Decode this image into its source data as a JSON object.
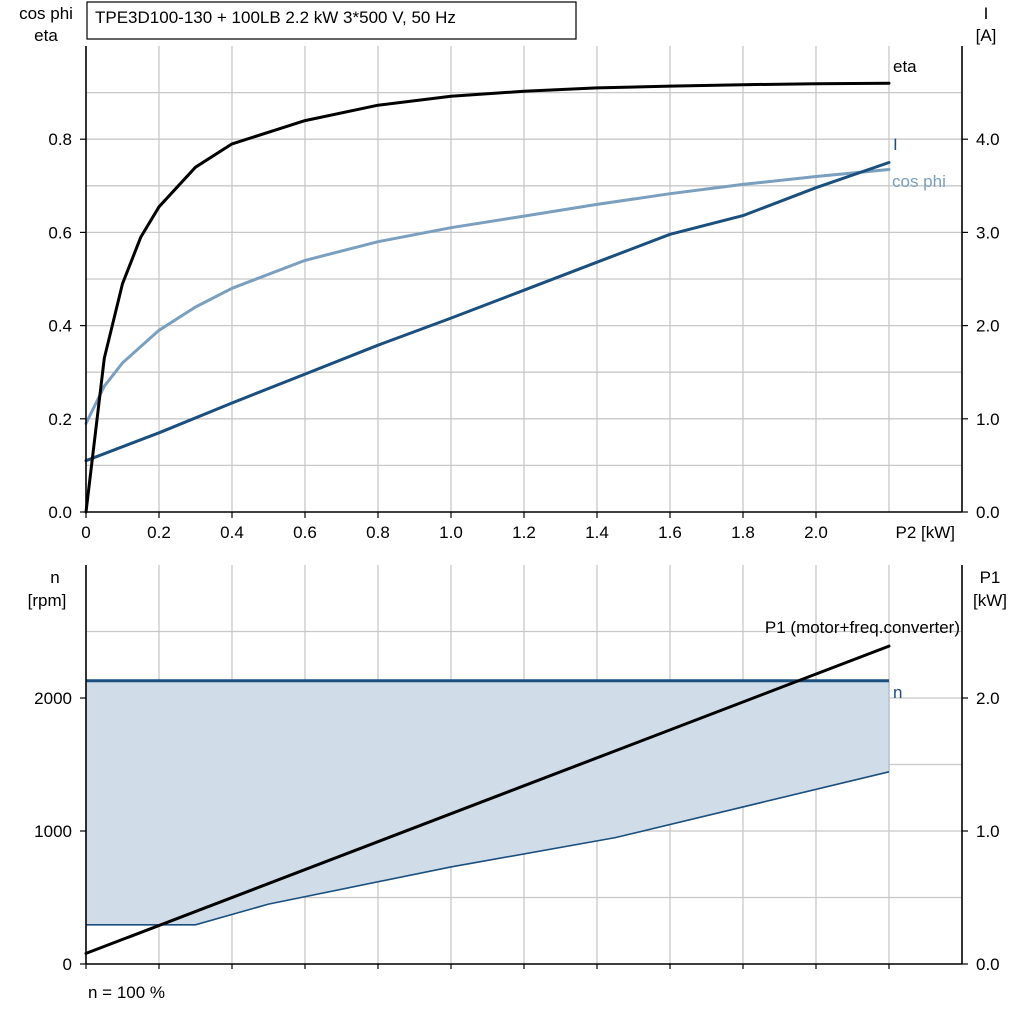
{
  "title": "TPE3D100-130 + 100LB   2.2 kW   3*500 V, 50 Hz",
  "footer_note": "n = 100 %",
  "chart_data": [
    {
      "type": "line",
      "left_axis": {
        "label_line1": "cos phi",
        "label_line2": "eta",
        "range": [
          0,
          1.0
        ],
        "ticks": [
          0.0,
          0.2,
          0.4,
          0.6,
          0.8
        ]
      },
      "right_axis": {
        "label_line1": "I",
        "label_line2": "[A]",
        "range": [
          0,
          5.0
        ],
        "ticks": [
          0.0,
          1.0,
          2.0,
          3.0,
          4.0
        ]
      },
      "x_axis": {
        "label": "P2 [kW]",
        "range": [
          0,
          2.4
        ],
        "ticks": [
          0,
          0.2,
          0.4,
          0.6,
          0.8,
          1.0,
          1.2,
          1.4,
          1.6,
          1.8,
          2.0
        ],
        "tick_labels": [
          "0",
          "0.2",
          "0.4",
          "0.6",
          "0.8",
          "1.0",
          "1.2",
          "1.4",
          "1.6",
          "1.8",
          "2.0"
        ],
        "grid_step": 0.2,
        "grid_max": 2.2
      },
      "grid": true,
      "series": [
        {
          "name": "eta",
          "axis": "left",
          "color": "#000000",
          "x": [
            0,
            0.05,
            0.1,
            0.15,
            0.2,
            0.3,
            0.4,
            0.6,
            0.8,
            1.0,
            1.2,
            1.4,
            1.6,
            1.8,
            2.0,
            2.2
          ],
          "y": [
            0.0,
            0.33,
            0.49,
            0.59,
            0.655,
            0.74,
            0.79,
            0.84,
            0.873,
            0.892,
            0.903,
            0.91,
            0.914,
            0.917,
            0.919,
            0.92
          ]
        },
        {
          "name": "cos phi",
          "axis": "left",
          "color": "#7b9fbf",
          "x": [
            0,
            0.05,
            0.1,
            0.2,
            0.3,
            0.4,
            0.6,
            0.8,
            1.0,
            1.2,
            1.4,
            1.6,
            1.8,
            2.0,
            2.2
          ],
          "y": [
            0.19,
            0.27,
            0.32,
            0.39,
            0.44,
            0.48,
            0.54,
            0.58,
            0.61,
            0.635,
            0.66,
            0.683,
            0.703,
            0.72,
            0.735
          ]
        },
        {
          "name": "I",
          "axis": "right",
          "color": "#1a4f7e",
          "x": [
            0,
            0.2,
            0.4,
            0.6,
            0.8,
            1.0,
            1.2,
            1.4,
            1.6,
            1.8,
            2.0,
            2.2
          ],
          "y": [
            0.55,
            0.85,
            1.17,
            1.48,
            1.79,
            2.08,
            2.38,
            2.68,
            2.98,
            3.18,
            3.48,
            3.75
          ]
        }
      ]
    },
    {
      "type": "area",
      "left_axis": {
        "label_line1": "n",
        "label_line2": "[rpm]",
        "range": [
          0,
          3000
        ],
        "ticks": [
          0,
          1000,
          2000
        ]
      },
      "right_axis": {
        "label_line1": "P1",
        "label_line2": "[kW]",
        "range": [
          0,
          3.0
        ],
        "ticks": [
          0.0,
          1.0,
          2.0
        ],
        "tick_labels": [
          "0.0",
          "1.0",
          "2.0"
        ]
      },
      "x_axis": {
        "range": [
          0,
          2.4
        ],
        "grid_step": 0.2,
        "grid_max": 2.2
      },
      "grid": true,
      "operating_range": {
        "name": "n",
        "color": "#1a4f7e",
        "fill": "#d0dce8",
        "upper": {
          "x": [
            0,
            2.2
          ],
          "y": [
            2130,
            2130
          ]
        },
        "lower": {
          "x": [
            0,
            0.3,
            0.5,
            1.0,
            1.45,
            2.2
          ],
          "y": [
            295,
            295,
            450,
            730,
            950,
            1445
          ]
        }
      },
      "series": [
        {
          "name": "P1 (motor+freq.converter)",
          "axis": "right",
          "color": "#000000",
          "x": [
            0,
            2.2
          ],
          "y": [
            0.08,
            2.39
          ]
        }
      ]
    }
  ]
}
